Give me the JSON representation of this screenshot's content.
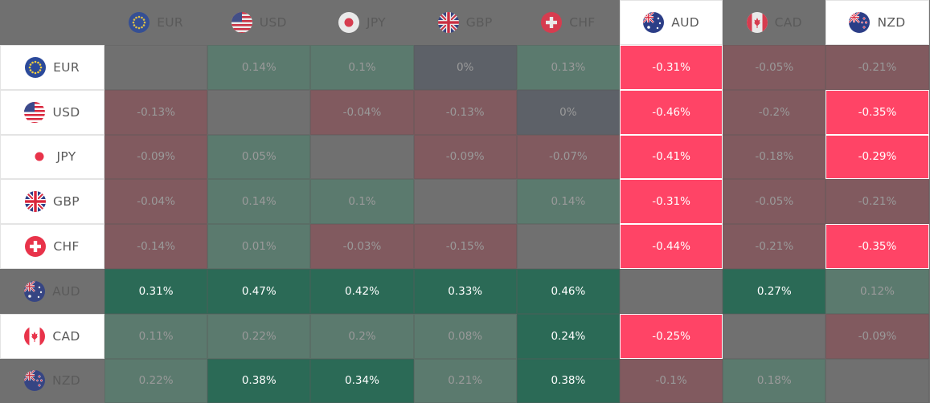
{
  "currencies": [
    "EUR",
    "USD",
    "JPY",
    "GBP",
    "CHF",
    "AUD",
    "CAD",
    "NZD"
  ],
  "flag_icons": {
    "EUR": "eu-flag-icon",
    "USD": "us-flag-icon",
    "JPY": "japan-flag-icon",
    "GBP": "uk-flag-icon",
    "CHF": "switzerland-flag-icon",
    "AUD": "australia-flag-icon",
    "CAD": "canada-flag-icon",
    "NZD": "new-zealand-flag-icon"
  },
  "highlighted_columns": [
    "AUD",
    "NZD"
  ],
  "highlighted_rows": [
    "EUR",
    "USD",
    "JPY",
    "GBP",
    "CHF",
    "CAD"
  ],
  "colors": {
    "background": "#707070",
    "header_highlight_bg": "#ffffff",
    "text_dim": "#9a9a9a",
    "text_dark": "#5a5a5a",
    "text_bright": "#ffffff",
    "strong_negative": "#ff4466",
    "weak_negative": "#815a5f",
    "zero": "#5d6168",
    "weak_positive": "#5b7a6e",
    "strong_positive": "#2b6a56",
    "diagonal": "#707070"
  },
  "chart_data": {
    "type": "heatmap",
    "title": "",
    "rows": [
      "EUR",
      "USD",
      "JPY",
      "GBP",
      "CHF",
      "AUD",
      "CAD",
      "NZD"
    ],
    "columns": [
      "EUR",
      "USD",
      "JPY",
      "GBP",
      "CHF",
      "AUD",
      "CAD",
      "NZD"
    ],
    "cells": [
      [
        null,
        "0.14%",
        "0.1%",
        "0%",
        "0.13%",
        "-0.31%",
        "-0.05%",
        "-0.21%"
      ],
      [
        "-0.13%",
        null,
        "-0.04%",
        "-0.13%",
        "0%",
        "-0.46%",
        "-0.2%",
        "-0.35%"
      ],
      [
        "-0.09%",
        "0.05%",
        null,
        "-0.09%",
        "-0.07%",
        "-0.41%",
        "-0.18%",
        "-0.29%"
      ],
      [
        "-0.04%",
        "0.14%",
        "0.1%",
        null,
        "0.14%",
        "-0.31%",
        "-0.05%",
        "-0.21%"
      ],
      [
        "-0.14%",
        "0.01%",
        "-0.03%",
        "-0.15%",
        null,
        "-0.44%",
        "-0.21%",
        "-0.35%"
      ],
      [
        "0.31%",
        "0.47%",
        "0.42%",
        "0.33%",
        "0.46%",
        null,
        "0.27%",
        "0.12%"
      ],
      [
        "0.11%",
        "0.22%",
        "0.2%",
        "0.08%",
        "0.24%",
        "-0.25%",
        null,
        "-0.09%"
      ],
      [
        "0.22%",
        "0.38%",
        "0.34%",
        "0.21%",
        "0.38%",
        "-0.1%",
        "0.18%",
        null
      ]
    ],
    "cell_styles": [
      [
        "diagonal",
        "weak_positive",
        "weak_positive",
        "zero",
        "weak_positive",
        "strong_negative",
        "weak_negative",
        "weak_negative"
      ],
      [
        "weak_negative",
        "diagonal",
        "weak_negative",
        "weak_negative",
        "zero",
        "strong_negative",
        "weak_negative",
        "strong_negative"
      ],
      [
        "weak_negative",
        "weak_positive",
        "diagonal",
        "weak_negative",
        "weak_negative",
        "strong_negative",
        "weak_negative",
        "strong_negative"
      ],
      [
        "weak_negative",
        "weak_positive",
        "weak_positive",
        "diagonal",
        "weak_positive",
        "strong_negative",
        "weak_negative",
        "weak_negative"
      ],
      [
        "weak_negative",
        "weak_positive",
        "weak_negative",
        "weak_negative",
        "diagonal",
        "strong_negative",
        "weak_negative",
        "strong_negative"
      ],
      [
        "strong_positive",
        "strong_positive",
        "strong_positive",
        "strong_positive",
        "strong_positive",
        "diagonal",
        "strong_positive",
        "weak_positive"
      ],
      [
        "weak_positive",
        "weak_positive",
        "weak_positive",
        "weak_positive",
        "strong_positive",
        "strong_negative",
        "diagonal",
        "weak_negative"
      ],
      [
        "weak_positive",
        "strong_positive",
        "strong_positive",
        "weak_positive",
        "strong_positive",
        "weak_negative",
        "weak_positive",
        "diagonal"
      ]
    ],
    "bright_text_cells": [
      [
        false,
        false,
        false,
        false,
        false,
        true,
        false,
        false
      ],
      [
        false,
        false,
        false,
        false,
        false,
        true,
        false,
        true
      ],
      [
        false,
        false,
        false,
        false,
        false,
        true,
        false,
        true
      ],
      [
        false,
        false,
        false,
        false,
        false,
        true,
        false,
        false
      ],
      [
        false,
        false,
        false,
        false,
        false,
        true,
        false,
        true
      ],
      [
        true,
        true,
        true,
        true,
        true,
        false,
        true,
        false
      ],
      [
        false,
        false,
        false,
        false,
        true,
        true,
        false,
        false
      ],
      [
        false,
        true,
        true,
        false,
        true,
        false,
        false,
        false
      ]
    ]
  }
}
